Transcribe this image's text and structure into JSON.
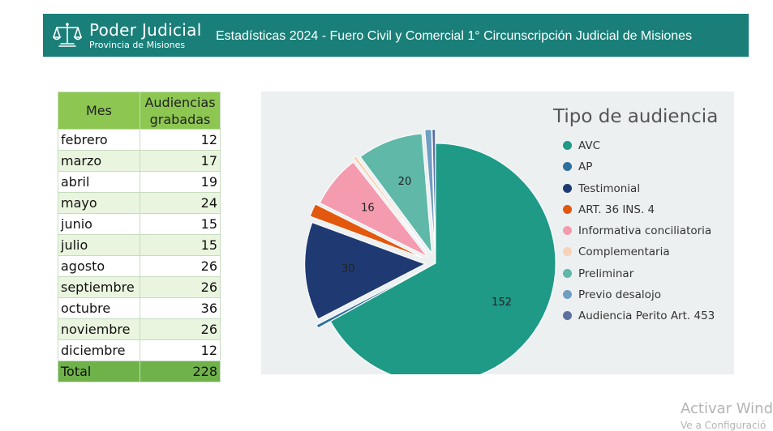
{
  "header": {
    "logo_title": "Poder Judicial",
    "logo_subtitle": "Provincia de Misiones",
    "title": "Estadísticas 2024 - Fuero Civil y Comercial 1° Circunscripción Judicial de Misiones",
    "background": "#1a7f78"
  },
  "table": {
    "col_month": "Mes",
    "col_count_line1": "Audiencias",
    "col_count_line2": "grabadas",
    "rows": [
      {
        "month": "febrero",
        "value": "12"
      },
      {
        "month": "marzo",
        "value": "17"
      },
      {
        "month": "abril",
        "value": "19"
      },
      {
        "month": "mayo",
        "value": "24"
      },
      {
        "month": "junio",
        "value": "15"
      },
      {
        "month": "julio",
        "value": "15"
      },
      {
        "month": "agosto",
        "value": "26"
      },
      {
        "month": "septiembre",
        "value": "26"
      },
      {
        "month": "octubre",
        "value": "36"
      },
      {
        "month": "noviembre",
        "value": "26"
      },
      {
        "month": "diciembre",
        "value": "12"
      }
    ],
    "total_label": "Total",
    "total_value": "228"
  },
  "chart_data": {
    "type": "pie",
    "legend_title": "Tipo de audiencia",
    "legend_position": "right",
    "slices": [
      {
        "label": "AVC",
        "value": 152,
        "color": "#1e9a87",
        "show_label": true
      },
      {
        "label": "AP",
        "value": 1,
        "color": "#2e6f9e",
        "show_label": false
      },
      {
        "label": "Testimonial",
        "value": 30,
        "color": "#1f3a73",
        "show_label": true
      },
      {
        "label": "ART. 36 INS. 4",
        "value": 4,
        "color": "#e3580f",
        "show_label": false
      },
      {
        "label": "Informativa conciliatoria",
        "value": 16,
        "color": "#f49bb0",
        "show_label": true
      },
      {
        "label": "Complementaria",
        "value": 1,
        "color": "#f8d2b6",
        "show_label": false
      },
      {
        "label": "Preliminar",
        "value": 20,
        "color": "#5fb8a8",
        "show_label": true
      },
      {
        "label": "Previo desalojo",
        "value": 2,
        "color": "#6f9ec3",
        "show_label": false
      },
      {
        "label": "Audiencia Perito Art. 453",
        "value": 1,
        "color": "#5b70a0",
        "show_label": false
      }
    ]
  },
  "watermark": {
    "line1": "Activar Wind",
    "line2": "Ve a Configuració"
  }
}
